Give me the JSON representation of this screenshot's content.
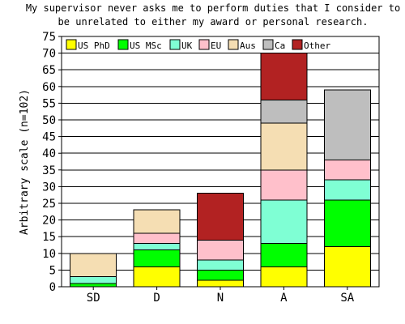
{
  "chart_data": {
    "type": "bar",
    "stacked": true,
    "title": "My supervisor never asks me to perform duties that I consider to be unrelated to either my award or personal research.",
    "title_lines": [
      "My supervisor never asks me to perform duties that I consider to",
      "be unrelated to either my award or personal research."
    ],
    "xlabel": "",
    "ylabel": "Arbitrary scale (n=102)",
    "ylim": [
      0,
      75
    ],
    "yticks": [
      "0",
      "5",
      "10",
      "15",
      "20",
      "25",
      "30",
      "35",
      "40",
      "45",
      "50",
      "55",
      "60",
      "65",
      "70",
      "75"
    ],
    "grid": true,
    "legend_position": "top-left",
    "categories": [
      "SD",
      "D",
      "N",
      "A",
      "SA"
    ],
    "series": [
      {
        "name": "US PhD",
        "color": "#ffff00",
        "values": [
          0,
          6,
          2,
          6,
          12
        ]
      },
      {
        "name": "US MSc",
        "color": "#00ff00",
        "values": [
          1,
          5,
          3,
          7,
          14
        ]
      },
      {
        "name": "UK",
        "color": "#7fffd4",
        "values": [
          2,
          2,
          3,
          13,
          6
        ]
      },
      {
        "name": "EU",
        "color": "#ffc0cb",
        "values": [
          0,
          3,
          6,
          9,
          6
        ]
      },
      {
        "name": "Aus",
        "color": "#f5deb3",
        "values": [
          7,
          7,
          0,
          14,
          0
        ]
      },
      {
        "name": "Ca",
        "color": "#bebebe",
        "values": [
          0,
          0,
          0,
          7,
          21
        ]
      },
      {
        "name": "Other",
        "color": "#b22222",
        "values": [
          0,
          0,
          14,
          14,
          0
        ]
      }
    ]
  }
}
